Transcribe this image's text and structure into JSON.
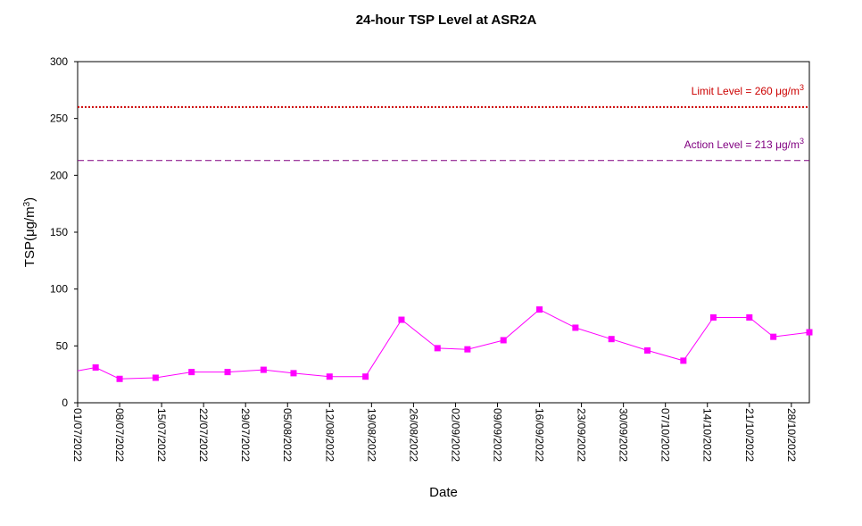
{
  "chart_data": {
    "type": "line",
    "title": "24-hour TSP Level at ASR2A",
    "xlabel": "Date",
    "ylabel": "TSP(μg/m3)",
    "ylabel_parts": {
      "main": "TSP(",
      "unit": "μg/m",
      "sup": "3",
      "close": ")"
    },
    "ylim": [
      0,
      300
    ],
    "yticks": [
      0,
      50,
      100,
      150,
      200,
      250,
      300
    ],
    "xlim": [
      "2022-07-01",
      "2022-10-31"
    ],
    "xtick_labels": [
      "01/07/2022",
      "08/07/2022",
      "15/07/2022",
      "22/07/2022",
      "29/07/2022",
      "05/08/2022",
      "12/08/2022",
      "19/08/2022",
      "26/08/2022",
      "02/09/2022",
      "09/09/2022",
      "16/09/2022",
      "23/09/2022",
      "30/09/2022",
      "07/10/2022",
      "14/10/2022",
      "21/10/2022",
      "28/10/2022"
    ],
    "xtick_dates": [
      "2022-07-01",
      "2022-07-08",
      "2022-07-15",
      "2022-07-22",
      "2022-07-29",
      "2022-08-05",
      "2022-08-12",
      "2022-08-19",
      "2022-08-26",
      "2022-09-02",
      "2022-09-09",
      "2022-09-16",
      "2022-09-23",
      "2022-09-30",
      "2022-10-07",
      "2022-10-14",
      "2022-10-21",
      "2022-10-28"
    ],
    "grid": false,
    "series": [
      {
        "color": "#ff00ff",
        "marker": "square",
        "points": [
          {
            "x": "2022-06-29",
            "y": 28,
            "marker": false
          },
          {
            "x": "2022-07-04",
            "y": 31
          },
          {
            "x": "2022-07-08",
            "y": 21
          },
          {
            "x": "2022-07-14",
            "y": 22
          },
          {
            "x": "2022-07-20",
            "y": 27
          },
          {
            "x": "2022-07-26",
            "y": 27
          },
          {
            "x": "2022-08-01",
            "y": 29
          },
          {
            "x": "2022-08-06",
            "y": 26
          },
          {
            "x": "2022-08-12",
            "y": 23
          },
          {
            "x": "2022-08-18",
            "y": 23
          },
          {
            "x": "2022-08-24",
            "y": 73
          },
          {
            "x": "2022-08-30",
            "y": 48
          },
          {
            "x": "2022-09-04",
            "y": 47
          },
          {
            "x": "2022-09-10",
            "y": 55
          },
          {
            "x": "2022-09-16",
            "y": 82
          },
          {
            "x": "2022-09-22",
            "y": 66
          },
          {
            "x": "2022-09-28",
            "y": 56
          },
          {
            "x": "2022-10-04",
            "y": 46
          },
          {
            "x": "2022-10-10",
            "y": 37
          },
          {
            "x": "2022-10-15",
            "y": 75
          },
          {
            "x": "2022-10-21",
            "y": 75
          },
          {
            "x": "2022-10-25",
            "y": 58
          },
          {
            "x": "2022-10-31",
            "y": 62
          }
        ]
      }
    ],
    "reference_lines": [
      {
        "label": "Limit Level  = 260 μg/m3",
        "label_main": "Limit Level  = 260 ",
        "label_unit": "μg/m",
        "label_sup": "3",
        "value": 260,
        "color": "#cc0000",
        "style": "dotted"
      },
      {
        "label": "Action Level  = 213 μg/m3",
        "label_main": "Action Level  = 213 ",
        "label_unit": "μg/m",
        "label_sup": "3",
        "value": 213,
        "color": "#800080",
        "style": "dashed"
      }
    ]
  }
}
